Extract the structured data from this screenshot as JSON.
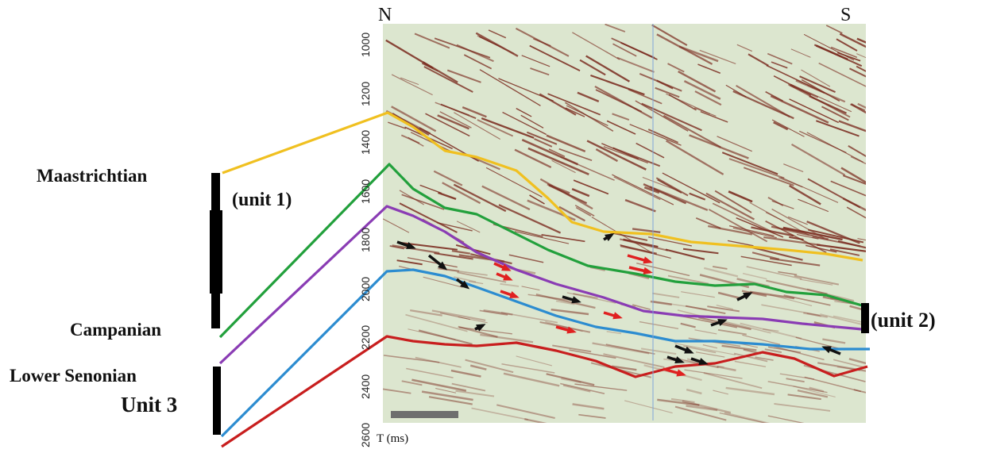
{
  "compass": {
    "north": "N",
    "south": "S"
  },
  "axis": {
    "title": "T (ms)",
    "ticks": [
      "1000",
      "1200",
      "1400",
      "1600",
      "1800",
      "2000",
      "2200",
      "2400",
      "2600"
    ]
  },
  "labels": {
    "maastrichtian": "Maastrichtian",
    "campanian": "Campanian",
    "lower_senonian": "Lower Senonian",
    "unit1": "(unit   1)",
    "unit2": "(unit   2)",
    "unit3": "Unit   3"
  },
  "horizons": [
    {
      "name": "Maastrichtian top",
      "color": "#F0C020"
    },
    {
      "name": "Campanian top",
      "color": "#22A03C"
    },
    {
      "name": "purple horizon",
      "color": "#8A3CB4"
    },
    {
      "name": "blue horizon",
      "color": "#2C8CD0"
    },
    {
      "name": "Lower Senonian base",
      "color": "#C81E1E"
    }
  ],
  "arrow_colors": {
    "black": "#111111",
    "red": "#E02020"
  },
  "section_colors": {
    "background": "#DCE6CF",
    "reflector": "#7A2A1E"
  }
}
